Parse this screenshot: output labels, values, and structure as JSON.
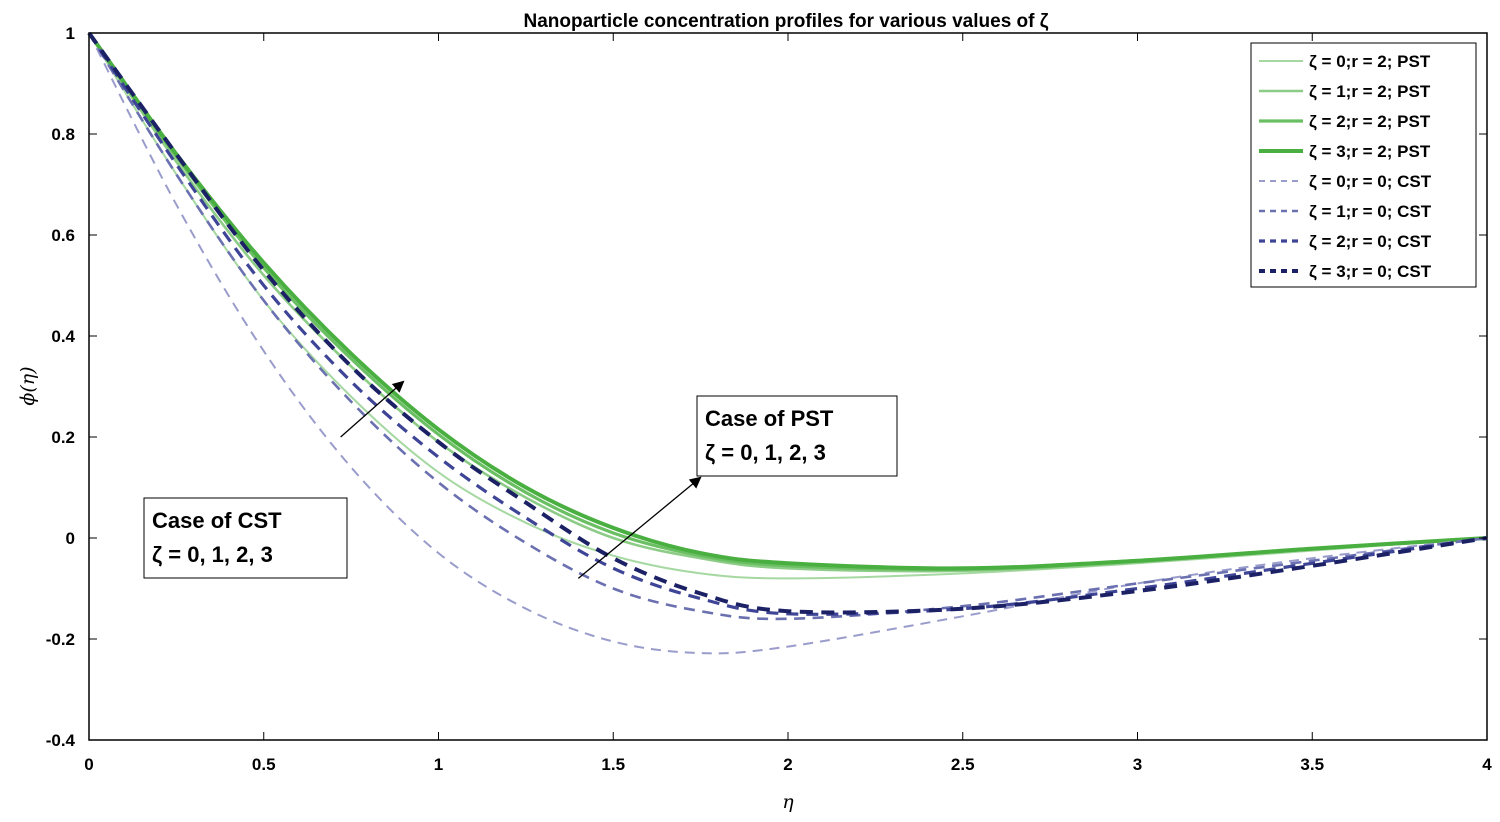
{
  "chart_data": {
    "type": "line",
    "title": "Nanoparticle concentration profiles for various values of ζ",
    "xlabel": "η",
    "ylabel": "ϕ(η)",
    "xlim": [
      0,
      4
    ],
    "ylim": [
      -0.4,
      1
    ],
    "xticks": [
      0,
      0.5,
      1,
      1.5,
      2,
      2.5,
      3,
      3.5,
      4
    ],
    "xtick_labels": [
      "0",
      "0.5",
      "1",
      "1.5",
      "2",
      "2.5",
      "3",
      "3.5",
      "4"
    ],
    "yticks": [
      -0.4,
      -0.2,
      0,
      0.2,
      0.4,
      0.6,
      0.8,
      1
    ],
    "ytick_labels": [
      "-0.4",
      "-0.2",
      "0",
      "0.2",
      "0.4",
      "0.6",
      "0.8",
      "1"
    ],
    "grid": false,
    "legend_position": "top-right",
    "series": [
      {
        "name": "ζ = 0;r = 2; PST",
        "color": "#a6d8a1",
        "dash": "solid",
        "points": [
          [
            0,
            1
          ],
          [
            0.25,
            0.72
          ],
          [
            0.5,
            0.47
          ],
          [
            0.75,
            0.28
          ],
          [
            1,
            0.13
          ],
          [
            1.25,
            0.03
          ],
          [
            1.5,
            -0.035
          ],
          [
            1.75,
            -0.07
          ],
          [
            2,
            -0.08
          ],
          [
            2.5,
            -0.07
          ],
          [
            3,
            -0.05
          ],
          [
            3.5,
            -0.025
          ],
          [
            4,
            0
          ]
        ]
      },
      {
        "name": "ζ = 1;r = 2; PST",
        "color": "#8ccc86",
        "dash": "solid",
        "points": [
          [
            0,
            1
          ],
          [
            0.25,
            0.745
          ],
          [
            0.5,
            0.52
          ],
          [
            0.75,
            0.34
          ],
          [
            1,
            0.19
          ],
          [
            1.25,
            0.08
          ],
          [
            1.5,
            0.0
          ],
          [
            1.75,
            -0.04
          ],
          [
            2,
            -0.06
          ],
          [
            2.5,
            -0.065
          ],
          [
            3,
            -0.048
          ],
          [
            3.5,
            -0.022
          ],
          [
            4,
            0
          ]
        ]
      },
      {
        "name": "ζ = 2;r = 2; PST",
        "color": "#6bbf63",
        "dash": "solid",
        "points": [
          [
            0,
            1
          ],
          [
            0.25,
            0.755
          ],
          [
            0.5,
            0.535
          ],
          [
            0.75,
            0.355
          ],
          [
            1,
            0.205
          ],
          [
            1.25,
            0.09
          ],
          [
            1.5,
            0.01
          ],
          [
            1.75,
            -0.035
          ],
          [
            2,
            -0.055
          ],
          [
            2.5,
            -0.062
          ],
          [
            3,
            -0.046
          ],
          [
            3.5,
            -0.022
          ],
          [
            4,
            0
          ]
        ]
      },
      {
        "name": "ζ = 3;r = 2; PST",
        "color": "#4aaf41",
        "dash": "solid",
        "points": [
          [
            0,
            1
          ],
          [
            0.25,
            0.76
          ],
          [
            0.5,
            0.545
          ],
          [
            0.75,
            0.365
          ],
          [
            1,
            0.215
          ],
          [
            1.25,
            0.1
          ],
          [
            1.5,
            0.02
          ],
          [
            1.75,
            -0.03
          ],
          [
            2,
            -0.05
          ],
          [
            2.5,
            -0.06
          ],
          [
            3,
            -0.045
          ],
          [
            3.5,
            -0.021
          ],
          [
            4,
            0
          ]
        ]
      },
      {
        "name": "ζ = 0;r = 0; CST",
        "color": "#9a9ccb",
        "dash": "dashed",
        "points": [
          [
            0,
            1
          ],
          [
            0.25,
            0.66
          ],
          [
            0.5,
            0.37
          ],
          [
            0.75,
            0.14
          ],
          [
            1,
            -0.03
          ],
          [
            1.25,
            -0.14
          ],
          [
            1.5,
            -0.205
          ],
          [
            1.75,
            -0.228
          ],
          [
            2,
            -0.215
          ],
          [
            2.5,
            -0.155
          ],
          [
            3,
            -0.09
          ],
          [
            3.5,
            -0.04
          ],
          [
            4,
            0
          ]
        ]
      },
      {
        "name": "ζ = 1;r = 0; CST",
        "color": "#6b70b0",
        "dash": "dashed",
        "points": [
          [
            0,
            1
          ],
          [
            0.25,
            0.72
          ],
          [
            0.5,
            0.47
          ],
          [
            0.75,
            0.27
          ],
          [
            1,
            0.11
          ],
          [
            1.25,
            -0.01
          ],
          [
            1.5,
            -0.1
          ],
          [
            1.75,
            -0.145
          ],
          [
            2,
            -0.16
          ],
          [
            2.5,
            -0.135
          ],
          [
            3,
            -0.09
          ],
          [
            3.5,
            -0.045
          ],
          [
            4,
            0
          ]
        ]
      },
      {
        "name": "ζ = 2;r = 0; CST",
        "color": "#3e4596",
        "dash": "dashed",
        "points": [
          [
            0,
            1
          ],
          [
            0.25,
            0.74
          ],
          [
            0.5,
            0.5
          ],
          [
            0.75,
            0.31
          ],
          [
            1,
            0.16
          ],
          [
            1.25,
            0.04
          ],
          [
            1.5,
            -0.06
          ],
          [
            1.75,
            -0.12
          ],
          [
            2,
            -0.15
          ],
          [
            2.5,
            -0.14
          ],
          [
            3,
            -0.1
          ],
          [
            3.5,
            -0.05
          ],
          [
            4,
            0
          ]
        ]
      },
      {
        "name": "ζ = 3;r = 0; CST",
        "color": "#1c2166",
        "dash": "dashed",
        "points": [
          [
            0,
            1
          ],
          [
            0.25,
            0.76
          ],
          [
            0.5,
            0.53
          ],
          [
            0.75,
            0.34
          ],
          [
            1,
            0.19
          ],
          [
            1.25,
            0.07
          ],
          [
            1.5,
            -0.04
          ],
          [
            1.75,
            -0.11
          ],
          [
            2,
            -0.145
          ],
          [
            2.5,
            -0.14
          ],
          [
            3,
            -0.105
          ],
          [
            3.5,
            -0.055
          ],
          [
            4,
            0
          ]
        ]
      }
    ],
    "annotations": [
      {
        "lines": [
          "Case of PST",
          "ζ = 0, 1, 2, 3"
        ],
        "arrow_from": [
          1.4,
          -0.08
        ],
        "arrow_to": [
          1.75,
          0.12
        ]
      },
      {
        "lines": [
          "Case of CST",
          "ζ = 0, 1, 2, 3"
        ],
        "arrow_from": [
          0.72,
          0.2
        ],
        "arrow_to": [
          0.9,
          0.31
        ]
      }
    ]
  }
}
